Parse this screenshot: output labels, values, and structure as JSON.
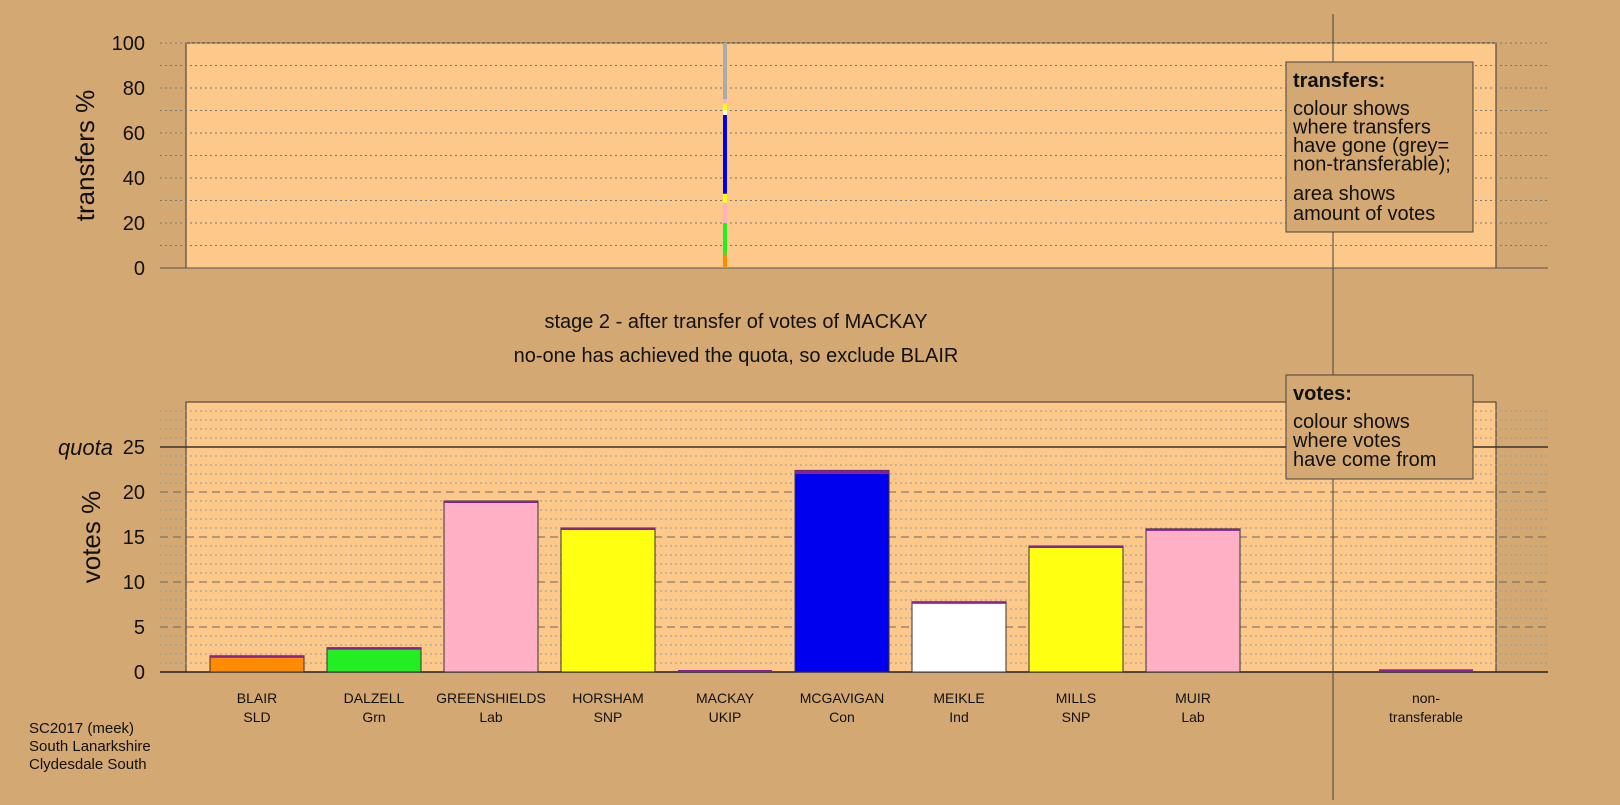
{
  "colors": {
    "background": "#d4a872",
    "plot_area": "#fdc98a",
    "BLAIR": "#ff8c00",
    "DALZELL": "#22ee22",
    "GREENSHIELDS": "#ffb0c4",
    "HORSHAM": "#ffff11",
    "MACKAY": "#8a1f9a",
    "MCGAVIGAN": "#0000ee",
    "MEIKLE": "#ffffff",
    "MILLS": "#ffff11",
    "MUIR": "#ffb0c4",
    "non-transferable": "#aaaaaa"
  },
  "captions": {
    "stage": "stage 2 - after transfer of votes of MACKAY",
    "decision": "no-one has achieved the quota, so exclude BLAIR"
  },
  "footer": {
    "line1": "SC2017 (meek)",
    "line2": "South Lanarkshire",
    "line3": "Clydesdale South"
  },
  "legends": {
    "transfers": {
      "title": "transfers:",
      "lines1": [
        "colour shows",
        "where transfers",
        "have gone (grey=",
        "non-transferable);"
      ],
      "lines2": [
        "area shows",
        "amount of votes"
      ]
    },
    "votes": {
      "title": "votes:",
      "lines": [
        "colour shows",
        "where votes",
        "have come from"
      ]
    }
  },
  "chart_data": [
    {
      "type": "bar",
      "ylabel": "transfers %",
      "ylim": [
        0,
        100
      ],
      "yticks": [
        0,
        20,
        40,
        60,
        80,
        100
      ],
      "grid": "dotted",
      "transfer_from": "MACKAY",
      "stacked_segments": [
        {
          "to": "BLAIR",
          "value": 6
        },
        {
          "to": "DALZELL",
          "value": 14
        },
        {
          "to": "GREENSHIELDS",
          "value": 9
        },
        {
          "to": "HORSHAM",
          "value": 4
        },
        {
          "to": "MCGAVIGAN",
          "value": 35
        },
        {
          "to": "MEIKLE",
          "value": 2
        },
        {
          "to": "MILLS",
          "value": 3
        },
        {
          "to": "MUIR",
          "value": 2
        },
        {
          "to": "non-transferable",
          "value": 25
        }
      ]
    },
    {
      "type": "bar",
      "ylabel": "votes %",
      "ylim": [
        0,
        30
      ],
      "yticks": [
        0,
        5,
        10,
        15,
        20,
        25
      ],
      "quota_label": "quota",
      "quota": 25,
      "grid": "dotted",
      "categories": [
        {
          "name": "BLAIR",
          "party": "SLD",
          "value": 1.8,
          "transfer": 0.1
        },
        {
          "name": "DALZELL",
          "party": "Grn",
          "value": 2.7,
          "transfer": 0.2
        },
        {
          "name": "GREENSHIELDS",
          "party": "Lab",
          "value": 19.0,
          "transfer": 0.15
        },
        {
          "name": "HORSHAM",
          "party": "SNP",
          "value": 16.0,
          "transfer": 0.05
        },
        {
          "name": "MACKAY",
          "party": "UKIP",
          "value": 0,
          "transfer": 0
        },
        {
          "name": "MCGAVIGAN",
          "party": "Con",
          "value": 22.4,
          "transfer": 0.4
        },
        {
          "name": "MEIKLE",
          "party": "Ind",
          "value": 7.8,
          "transfer": 0.05
        },
        {
          "name": "MILLS",
          "party": "SNP",
          "value": 14.0,
          "transfer": 0.05
        },
        {
          "name": "MUIR",
          "party": "Lab",
          "value": 15.9,
          "transfer": 0.05
        }
      ],
      "non_transferable": {
        "label_line1": "non-",
        "label_line2": "transferable",
        "value": 0.3
      }
    }
  ]
}
